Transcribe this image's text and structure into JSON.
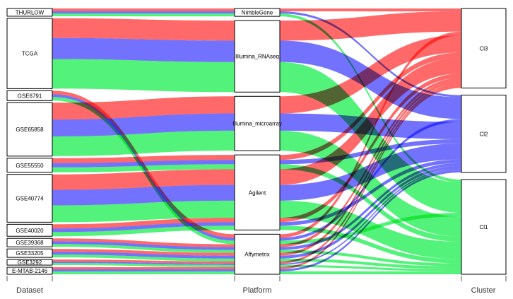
{
  "colors": {
    "Cl1": "#22ee55",
    "Cl2": "#4a4aff",
    "Cl3": "#ff3f3f",
    "node_fill": "#ffffff",
    "node_stroke": "#000000"
  },
  "axes": [
    "Dataset",
    "Platform",
    "Cluster"
  ],
  "datasets": [
    "THURLOW",
    "TCGA",
    "GSE6791",
    "GSE65858",
    "GSE55550",
    "GSE40774",
    "GSE40020",
    "GSE39368",
    "GSE33205",
    "GSE3292",
    "E-MTAB-2146"
  ],
  "platforms": [
    "NimbleGene",
    "Illumina_RNAseq",
    "Illumina_microarray",
    "Agilent",
    "Affymetrix"
  ],
  "clusters": [
    "Cl3",
    "Cl2",
    "Cl1"
  ],
  "chart_data": {
    "type": "alluvial",
    "flows": [
      {
        "dataset": "THURLOW",
        "platform": "NimbleGene",
        "cluster": "Cl3",
        "value": 4
      },
      {
        "dataset": "THURLOW",
        "platform": "NimbleGene",
        "cluster": "Cl2",
        "value": 3
      },
      {
        "dataset": "THURLOW",
        "platform": "NimbleGene",
        "cluster": "Cl1",
        "value": 4
      },
      {
        "dataset": "TCGA",
        "platform": "Illumina_RNAseq",
        "cluster": "Cl3",
        "value": 28
      },
      {
        "dataset": "TCGA",
        "platform": "Illumina_RNAseq",
        "cluster": "Cl2",
        "value": 30
      },
      {
        "dataset": "TCGA",
        "platform": "Illumina_RNAseq",
        "cluster": "Cl1",
        "value": 42
      },
      {
        "dataset": "GSE6791",
        "platform": "Affymetrix",
        "cluster": "Cl3",
        "value": 5
      },
      {
        "dataset": "GSE6791",
        "platform": "Affymetrix",
        "cluster": "Cl2",
        "value": 4
      },
      {
        "dataset": "GSE6791",
        "platform": "Affymetrix",
        "cluster": "Cl1",
        "value": 5
      },
      {
        "dataset": "GSE65858",
        "platform": "Illumina_microarray",
        "cluster": "Cl3",
        "value": 24
      },
      {
        "dataset": "GSE65858",
        "platform": "Illumina_microarray",
        "cluster": "Cl2",
        "value": 24
      },
      {
        "dataset": "GSE65858",
        "platform": "Illumina_microarray",
        "cluster": "Cl1",
        "value": 28
      },
      {
        "dataset": "GSE55550",
        "platform": "Agilent",
        "cluster": "Cl3",
        "value": 7
      },
      {
        "dataset": "GSE55550",
        "platform": "Agilent",
        "cluster": "Cl2",
        "value": 6
      },
      {
        "dataset": "GSE55550",
        "platform": "Agilent",
        "cluster": "Cl1",
        "value": 7
      },
      {
        "dataset": "GSE40774",
        "platform": "Agilent",
        "cluster": "Cl3",
        "value": 22
      },
      {
        "dataset": "GSE40774",
        "platform": "Agilent",
        "cluster": "Cl2",
        "value": 22
      },
      {
        "dataset": "GSE40774",
        "platform": "Agilent",
        "cluster": "Cl1",
        "value": 24
      },
      {
        "dataset": "GSE40020",
        "platform": "Agilent",
        "cluster": "Cl3",
        "value": 6
      },
      {
        "dataset": "GSE40020",
        "platform": "Agilent",
        "cluster": "Cl2",
        "value": 5
      },
      {
        "dataset": "GSE40020",
        "platform": "Agilent",
        "cluster": "Cl1",
        "value": 6
      },
      {
        "dataset": "GSE39368",
        "platform": "Affymetrix",
        "cluster": "Cl3",
        "value": 4
      },
      {
        "dataset": "GSE39368",
        "platform": "Affymetrix",
        "cluster": "Cl2",
        "value": 4
      },
      {
        "dataset": "GSE39368",
        "platform": "Affymetrix",
        "cluster": "Cl1",
        "value": 4
      },
      {
        "dataset": "GSE33205",
        "platform": "Affymetrix",
        "cluster": "Cl3",
        "value": 4
      },
      {
        "dataset": "GSE33205",
        "platform": "Affymetrix",
        "cluster": "Cl2",
        "value": 4
      },
      {
        "dataset": "GSE33205",
        "platform": "Affymetrix",
        "cluster": "Cl1",
        "value": 4
      },
      {
        "dataset": "GSE3292",
        "platform": "Affymetrix",
        "cluster": "Cl3",
        "value": 3
      },
      {
        "dataset": "GSE3292",
        "platform": "Affymetrix",
        "cluster": "Cl2",
        "value": 2
      },
      {
        "dataset": "GSE3292",
        "platform": "Affymetrix",
        "cluster": "Cl1",
        "value": 3
      },
      {
        "dataset": "E-MTAB-2146",
        "platform": "Affymetrix",
        "cluster": "Cl3",
        "value": 3
      },
      {
        "dataset": "E-MTAB-2146",
        "platform": "Affymetrix",
        "cluster": "Cl2",
        "value": 3
      },
      {
        "dataset": "E-MTAB-2146",
        "platform": "Affymetrix",
        "cluster": "Cl1",
        "value": 4
      }
    ]
  }
}
